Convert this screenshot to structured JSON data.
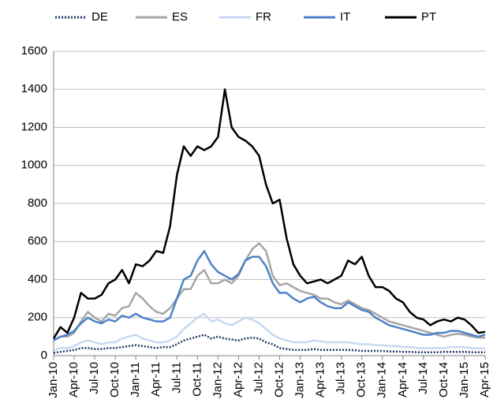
{
  "chart_data": {
    "type": "line",
    "categories": [
      "Jan-10",
      null,
      null,
      "Apr-10",
      null,
      null,
      "Jul-10",
      null,
      null,
      "Oct-10",
      null,
      null,
      "Jan-11",
      null,
      null,
      "Apr-11",
      null,
      null,
      "Jul-11",
      null,
      null,
      "Oct-11",
      null,
      null,
      "Jan-12",
      null,
      null,
      "Apr-12",
      null,
      null,
      "Jul-12",
      null,
      null,
      "Oct-12",
      null,
      null,
      "Jan-13",
      null,
      null,
      "Apr-13",
      null,
      null,
      "Jul-13",
      null,
      null,
      "Oct-13",
      null,
      null,
      "Jan-14",
      null,
      null,
      "Apr-14",
      null,
      null,
      "Jul-14",
      null,
      null,
      "Oct-14",
      null,
      null,
      "Jan-15",
      null,
      null,
      "Apr-15"
    ],
    "series": [
      {
        "name": "DE",
        "color": "#1f3864",
        "style": "dotted",
        "values": [
          15,
          20,
          25,
          30,
          40,
          40,
          35,
          35,
          40,
          40,
          45,
          50,
          55,
          50,
          45,
          40,
          45,
          45,
          60,
          80,
          90,
          100,
          110,
          90,
          100,
          90,
          85,
          80,
          90,
          95,
          90,
          70,
          60,
          40,
          35,
          30,
          30,
          30,
          35,
          30,
          30,
          30,
          30,
          30,
          28,
          25,
          25,
          25,
          25,
          22,
          22,
          20,
          20,
          18,
          18,
          18,
          18,
          20,
          20,
          20,
          20,
          18,
          18,
          18
        ]
      },
      {
        "name": "ES",
        "color": "#a6a6a6",
        "style": "solid",
        "values": [
          80,
          100,
          100,
          120,
          180,
          230,
          200,
          180,
          220,
          210,
          250,
          260,
          330,
          300,
          260,
          230,
          220,
          250,
          300,
          350,
          350,
          420,
          450,
          380,
          380,
          400,
          380,
          420,
          500,
          560,
          590,
          550,
          420,
          370,
          380,
          360,
          340,
          330,
          320,
          300,
          300,
          280,
          270,
          290,
          270,
          250,
          240,
          220,
          200,
          180,
          170,
          160,
          150,
          140,
          130,
          120,
          110,
          100,
          110,
          115,
          110,
          100,
          95,
          95
        ]
      },
      {
        "name": "FR",
        "color": "#c6d9f1",
        "style": "solid",
        "values": [
          30,
          40,
          40,
          50,
          70,
          80,
          70,
          60,
          70,
          70,
          90,
          100,
          110,
          90,
          80,
          70,
          70,
          80,
          100,
          140,
          170,
          200,
          220,
          180,
          190,
          170,
          160,
          180,
          200,
          190,
          170,
          140,
          110,
          90,
          80,
          70,
          70,
          70,
          80,
          75,
          70,
          70,
          70,
          70,
          65,
          60,
          60,
          55,
          55,
          50,
          50,
          45,
          45,
          40,
          40,
          40,
          40,
          40,
          45,
          45,
          45,
          40,
          38,
          38
        ]
      },
      {
        "name": "IT",
        "color": "#4f81c8",
        "style": "solid",
        "values": [
          80,
          100,
          110,
          130,
          170,
          200,
          180,
          170,
          190,
          180,
          210,
          200,
          220,
          200,
          190,
          180,
          180,
          200,
          300,
          400,
          420,
          500,
          550,
          480,
          440,
          420,
          400,
          430,
          500,
          520,
          520,
          470,
          380,
          330,
          330,
          300,
          280,
          300,
          310,
          280,
          260,
          250,
          250,
          280,
          260,
          240,
          230,
          200,
          180,
          160,
          150,
          140,
          130,
          120,
          110,
          110,
          120,
          120,
          130,
          130,
          120,
          110,
          100,
          110
        ]
      },
      {
        "name": "PT",
        "color": "#000000",
        "style": "solid",
        "values": [
          90,
          150,
          120,
          200,
          330,
          300,
          300,
          320,
          380,
          400,
          450,
          380,
          480,
          470,
          500,
          550,
          540,
          680,
          950,
          1100,
          1050,
          1100,
          1080,
          1100,
          1150,
          1400,
          1200,
          1150,
          1130,
          1100,
          1050,
          900,
          800,
          820,
          620,
          480,
          420,
          380,
          390,
          400,
          380,
          400,
          420,
          500,
          480,
          520,
          420,
          360,
          360,
          340,
          300,
          280,
          230,
          200,
          190,
          160,
          180,
          190,
          180,
          200,
          190,
          160,
          120,
          125
        ]
      }
    ],
    "ylim": [
      0,
      1600
    ],
    "yticks": [
      0,
      200,
      400,
      600,
      800,
      1000,
      1200,
      1400,
      1600
    ],
    "grid": true
  }
}
